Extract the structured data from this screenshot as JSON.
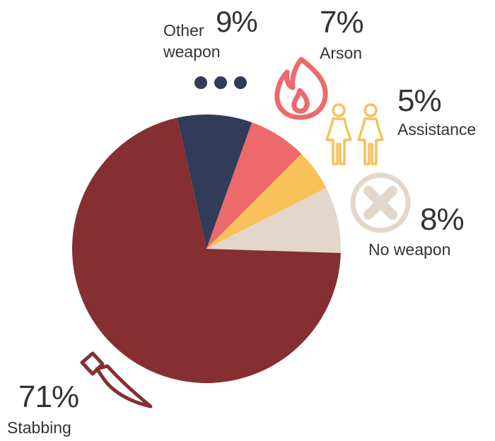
{
  "chart_data": {
    "type": "pie",
    "title": "",
    "slices": [
      {
        "label": "Stabbing",
        "value": 71,
        "display": "71%",
        "color": "#852F32",
        "icon": "knife-icon"
      },
      {
        "label": "Other weapon",
        "value": 9,
        "display": "9%",
        "color": "#323B58",
        "icon": "ellipsis-dots-icon",
        "label_lines": [
          "Other",
          "weapon"
        ]
      },
      {
        "label": "Arson",
        "value": 7,
        "display": "7%",
        "color": "#EC6A6C",
        "icon": "flame-icon"
      },
      {
        "label": "Assistance",
        "value": 5,
        "display": "5%",
        "color": "#F9C15A",
        "icon": "two-people-icon"
      },
      {
        "label": "No weapon",
        "value": 8,
        "display": "8%",
        "color": "#E3D7CB",
        "icon": "cross-circle-icon"
      }
    ]
  },
  "colors": {
    "text": "#333333",
    "dots": "#323B58",
    "flame": "#EC6A6C",
    "people": "#F9C15A",
    "no_weapon_icon": "#E3D7CB",
    "knife": "#852F32"
  }
}
